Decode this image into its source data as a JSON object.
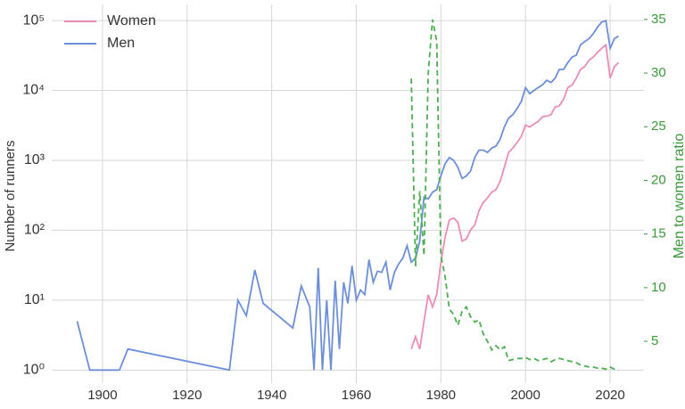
{
  "chart_data": {
    "type": "line",
    "ylabel": "Number of runners",
    "y2label": "Men to women ratio",
    "xlim": [
      1888,
      2028
    ],
    "xticks": [
      1900,
      1920,
      1940,
      1960,
      1980,
      2000,
      2020
    ],
    "ylim": [
      0.65,
      170000
    ],
    "log_y": true,
    "yticks": [
      {
        "value": 1,
        "label": "10⁰"
      },
      {
        "value": 10,
        "label": "10¹"
      },
      {
        "value": 100,
        "label": "10²"
      },
      {
        "value": 1000,
        "label": "10³"
      },
      {
        "value": 10000,
        "label": "10⁴"
      },
      {
        "value": 100000,
        "label": "10⁵"
      }
    ],
    "y2lim": [
      1.1,
      36.4
    ],
    "y2ticks": [
      5,
      10,
      15,
      20,
      25,
      30,
      35
    ],
    "grid": true,
    "legend": "upper-left",
    "y2color": "#3a9a3a",
    "series": [
      {
        "name": "Women",
        "color": "#ef8cb6",
        "x": [
          1973,
          1974,
          1975,
          1976,
          1977,
          1978,
          1979,
          1980,
          1981,
          1982,
          1983,
          1984,
          1985,
          1986,
          1987,
          1988,
          1989,
          1990,
          1991,
          1992,
          1993,
          1994,
          1995,
          1996,
          1997,
          1998,
          1999,
          2000,
          2001,
          2002,
          2003,
          2004,
          2005,
          2006,
          2007,
          2008,
          2009,
          2010,
          2011,
          2012,
          2013,
          2014,
          2015,
          2016,
          2017,
          2018,
          2019,
          2020,
          2021,
          2022
        ],
        "values": [
          2,
          3,
          2,
          5,
          12,
          8,
          12,
          35,
          80,
          140,
          150,
          130,
          70,
          75,
          100,
          120,
          190,
          250,
          290,
          350,
          380,
          500,
          800,
          1300,
          1500,
          1800,
          2200,
          3200,
          3000,
          3300,
          3600,
          4200,
          4300,
          4500,
          5800,
          6000,
          7500,
          11000,
          12000,
          15000,
          20000,
          22000,
          27000,
          30000,
          35000,
          40000,
          45000,
          15000,
          22000,
          25000
        ]
      },
      {
        "name": "Men",
        "color": "#6d8fda",
        "x": [
          1894,
          1897,
          1900,
          1904,
          1906,
          1930,
          1932,
          1934,
          1936,
          1938,
          1945,
          1947,
          1949,
          1950,
          1951,
          1952,
          1953,
          1954,
          1955,
          1956,
          1957,
          1958,
          1959,
          1960,
          1961,
          1962,
          1963,
          1964,
          1965,
          1966,
          1967,
          1968,
          1969,
          1970,
          1971,
          1972,
          1973,
          1974,
          1975,
          1976,
          1977,
          1978,
          1979,
          1980,
          1981,
          1982,
          1983,
          1984,
          1985,
          1986,
          1987,
          1988,
          1989,
          1990,
          1991,
          1992,
          1993,
          1994,
          1995,
          1996,
          1997,
          1998,
          1999,
          2000,
          2001,
          2002,
          2003,
          2004,
          2005,
          2006,
          2007,
          2008,
          2009,
          2010,
          2011,
          2012,
          2013,
          2014,
          2015,
          2016,
          2017,
          2018,
          2019,
          2020,
          2021,
          2022
        ],
        "values": [
          5,
          1,
          1,
          1,
          2,
          1,
          10,
          6,
          27,
          9,
          4,
          16,
          8,
          1,
          29,
          1,
          10,
          1,
          19,
          2,
          18,
          9,
          31,
          10,
          14,
          12,
          38,
          18,
          26,
          25,
          35,
          14,
          25,
          33,
          40,
          60,
          35,
          40,
          70,
          300,
          280,
          350,
          380,
          600,
          900,
          1100,
          1000,
          800,
          550,
          600,
          700,
          1100,
          1400,
          1400,
          1300,
          1500,
          1600,
          2000,
          3000,
          4000,
          4500,
          5500,
          7000,
          11000,
          9000,
          10000,
          11000,
          12000,
          14000,
          13000,
          15000,
          20000,
          20000,
          25000,
          30000,
          32000,
          45000,
          50000,
          55000,
          65000,
          80000,
          95000,
          100000,
          40000,
          55000,
          60000
        ]
      },
      {
        "name": "Men to women ratio",
        "color": "#4caf50",
        "axis": "y2",
        "dashed": true,
        "x": [
          1973,
          1974,
          1975,
          1976,
          1977,
          1978,
          1979,
          1980,
          1981,
          1982,
          1983,
          1984,
          1985,
          1986,
          1987,
          1988,
          1989,
          1990,
          1991,
          1992,
          1993,
          1994,
          1995,
          1996,
          1997,
          1998,
          1999,
          2000,
          2001,
          2002,
          2003,
          2004,
          2005,
          2006,
          2007,
          2008,
          2009,
          2010,
          2011,
          2012,
          2013,
          2014,
          2015,
          2016,
          2017,
          2018,
          2019,
          2020,
          2021,
          2022
        ],
        "values": [
          29.5,
          12,
          19,
          13,
          30,
          35,
          33,
          13,
          11,
          8,
          7.5,
          6.5,
          7.8,
          8.2,
          7.3,
          6.8,
          7,
          5.7,
          5,
          4.2,
          4.6,
          4.2,
          4.5,
          3.2,
          3.3,
          3.4,
          3.4,
          3.5,
          3.3,
          3.4,
          3.2,
          3.3,
          3.4,
          3.1,
          3.3,
          3.4,
          3.3,
          3.2,
          3.1,
          3,
          2.8,
          2.7,
          2.6,
          2.6,
          2.5,
          2.5,
          2.4,
          2.6,
          2.4,
          2.3
        ]
      }
    ]
  }
}
